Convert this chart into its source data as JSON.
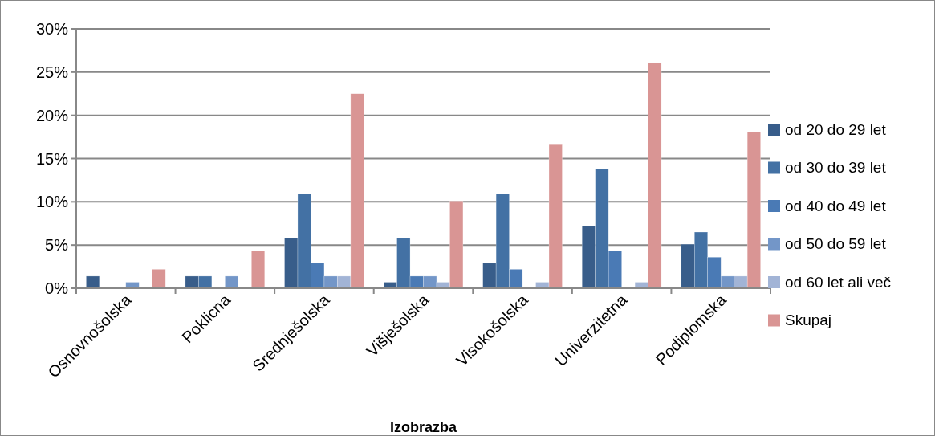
{
  "chart_data": {
    "type": "bar",
    "xlabel": "Izobrazba",
    "categories": [
      "Osnovnošolska",
      "Poklicna",
      "Srednješolska",
      "Višješolska",
      "Visokošolska",
      "Univerzitetna",
      "Podiplomska"
    ],
    "series": [
      {
        "name": "od 20 do 29 let",
        "color": "#385d8a",
        "values": [
          1.4,
          1.4,
          5.8,
          0.7,
          2.9,
          7.2,
          5.1
        ]
      },
      {
        "name": "od 30 do 39 let",
        "color": "#4371a4",
        "values": [
          0,
          1.4,
          10.9,
          5.8,
          10.9,
          13.8,
          6.5
        ]
      },
      {
        "name": "od 40 do 49 let",
        "color": "#4a7ab5",
        "values": [
          0,
          0,
          2.9,
          1.4,
          2.2,
          4.3,
          3.6
        ]
      },
      {
        "name": "od 50 do 59 let",
        "color": "#7396c8",
        "values": [
          0.7,
          1.4,
          1.4,
          1.4,
          0,
          0,
          1.4
        ]
      },
      {
        "name": "od 60 let ali več",
        "color": "#a2b4d6",
        "values": [
          0,
          0,
          1.4,
          0.7,
          0.7,
          0.7,
          1.4
        ]
      },
      {
        "name": "Skupaj",
        "color": "#d99594",
        "values": [
          2.2,
          4.3,
          22.5,
          10.1,
          16.7,
          26.1,
          18.1
        ]
      }
    ],
    "ylim": [
      0,
      30
    ],
    "yticks": [
      {
        "value": 0,
        "label": "0%"
      },
      {
        "value": 5,
        "label": "5%"
      },
      {
        "value": 10,
        "label": "10%"
      },
      {
        "value": 15,
        "label": "15%"
      },
      {
        "value": 20,
        "label": "20%"
      },
      {
        "value": 25,
        "label": "25%"
      },
      {
        "value": 30,
        "label": "30%"
      }
    ],
    "grid": "y",
    "legend": "right"
  }
}
